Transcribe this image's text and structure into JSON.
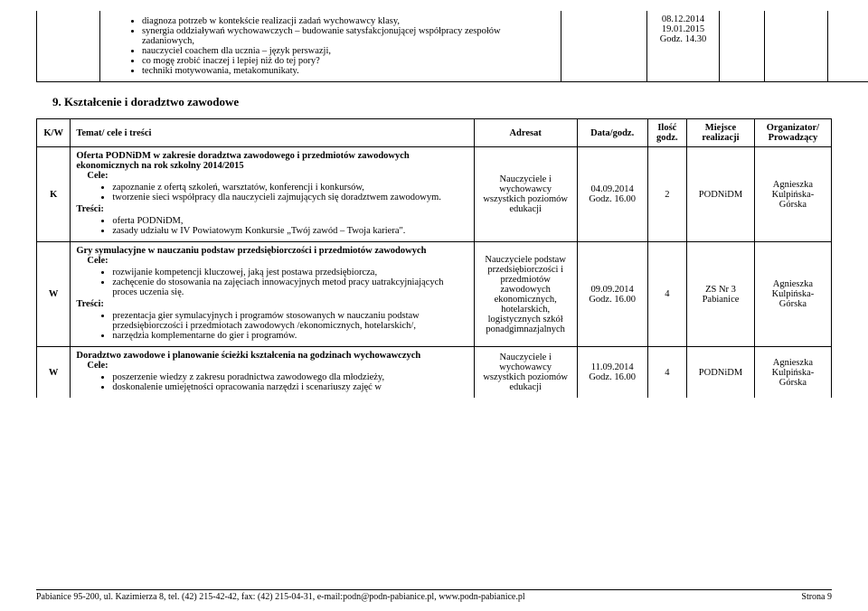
{
  "top_row": {
    "bullets": [
      "diagnoza potrzeb w kontekście realizacji zadań wychowawcy klasy,",
      "synergia oddziaływań wychowawczych – budowanie satysfakcjonującej współpracy  zespołów zadaniowych,",
      "nauczyciel coachem dla ucznia – język perswazji,",
      "co mogę zrobić inaczej i lepiej niż do tej pory?",
      "techniki motywowania, metakomunikaty."
    ],
    "dates": "08.12.2014\n19.01.2015\nGodz. 14.30"
  },
  "section_heading": "9.  Kształcenie i doradztwo zawodowe",
  "headers": {
    "kw": "K/W",
    "topic": "Temat/ cele i treści",
    "adresat": "Adresat",
    "data": "Data/godz.",
    "ilosc": "Ilość godz.",
    "miejsce": "Miejsce realizacji",
    "org": "Organizator/ Prowadzący"
  },
  "rows": [
    {
      "kw": "K",
      "title": "Oferta PODNiDM w zakresie doradztwa zawodowego i przedmiotów zawodowych ekonomicznych na rok szkolny 2014/2015",
      "cele_label": "Cele:",
      "cele": [
        "zapoznanie z ofertą szkoleń, warsztatów, konferencji i konkursów,",
        "tworzenie sieci współpracy dla nauczycieli zajmujących się doradztwem zawodowym."
      ],
      "tresci_label": "Treści:",
      "tresci": [
        "oferta PODNiDM,",
        "zasady udziału w IV Powiatowym Konkursie „Twój zawód – Twoja kariera\"."
      ],
      "adresat": "Nauczyciele i wychowawcy wszystkich poziomów edukacji",
      "data": "04.09.2014 Godz. 16.00",
      "ilosc": "2",
      "miejsce": "PODNiDM",
      "org": "Agnieszka Kulpińska-Górska"
    },
    {
      "kw": "W",
      "title": "Gry symulacyjne w nauczaniu podstaw przedsiębiorczości i przedmiotów zawodowych",
      "cele_label": "Cele:",
      "cele": [
        "rozwijanie kompetencji kluczowej, jaką jest postawa przedsiębiorcza,",
        "zachęcenie do stosowania na zajęciach innowacyjnych metod pracy uatrakcyjniających proces uczenia się."
      ],
      "tresci_label": "Treści:",
      "tresci": [
        "prezentacja gier symulacyjnych i programów stosowanych w nauczaniu podstaw przedsiębiorczości i przedmiotach zawodowych /ekonomicznych, hotelarskich/,",
        "narzędzia komplementarne do gier i programów."
      ],
      "adresat": "Nauczyciele podstaw przedsiębiorczości i przedmiotów zawodowych ekonomicznych, hotelarskich, logistycznych szkół ponadgimnazjalnych",
      "data": "09.09.2014 Godz. 16.00",
      "ilosc": "4",
      "miejsce": "ZS Nr 3 Pabianice",
      "org": "Agnieszka Kulpińska-Górska"
    },
    {
      "kw": "W",
      "title": "Doradztwo zawodowe i planowanie ścieżki kształcenia na godzinach wychowawczych",
      "cele_label": "Cele:",
      "cele": [
        "poszerzenie wiedzy z zakresu poradnictwa zawodowego dla młodzieży,",
        "doskonalenie umiejętności opracowania narzędzi i scenariuszy zajęć w"
      ],
      "tresci_label": "",
      "tresci": [],
      "adresat": "Nauczyciele i wychowawcy wszystkich poziomów edukacji",
      "data": "11.09.2014 Godz. 16.00",
      "ilosc": "4",
      "miejsce": "PODNiDM",
      "org": "Agnieszka Kulpińska-Górska"
    }
  ],
  "footer": {
    "left": "Pabianice 95-200, ul. Kazimierza 8, tel. (42) 215-42-42, fax: (42) 215-04-31, e-mail:podn@podn-pabianice.pl, www.podn-pabianice.pl",
    "right": "Strona 9"
  }
}
